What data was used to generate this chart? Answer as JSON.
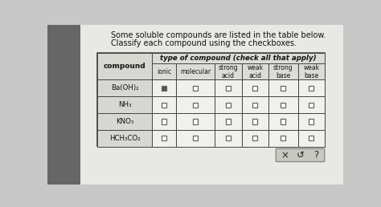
{
  "title1": "Some soluble compounds are listed in the table below.",
  "title2": "Classify each compound using the checkboxes.",
  "header_span": "type of compound (check all that apply)",
  "compounds": [
    "Ba(OH)₂",
    "NH₃",
    "KNO₃",
    "HCH₃CO₂"
  ],
  "col_headers_row2": [
    "ionic",
    "molecular",
    "strong\nacid",
    "weak\nacid",
    "strong\nbase",
    "weak\nbase"
  ],
  "bg_color": "#c8c8c8",
  "page_color": "#e8e8e4",
  "left_shadow": "#888888",
  "table_bg": "#f0f0ec",
  "header_bg": "#dcdcd6",
  "compound_col_bg": "#d8d8d2",
  "data_row_bg": "#f0f0ec",
  "border_color": "#444444",
  "text_color": "#111111",
  "footer_bg": "#c8c8c0",
  "footer_border": "#888888",
  "footer_symbols": [
    "×",
    "↺",
    "?"
  ],
  "checked_cell": [
    0,
    1
  ],
  "checkbox_fill_checked": "#555555",
  "checkbox_fill_empty": "#ffffff",
  "checkbox_border": "#666666"
}
